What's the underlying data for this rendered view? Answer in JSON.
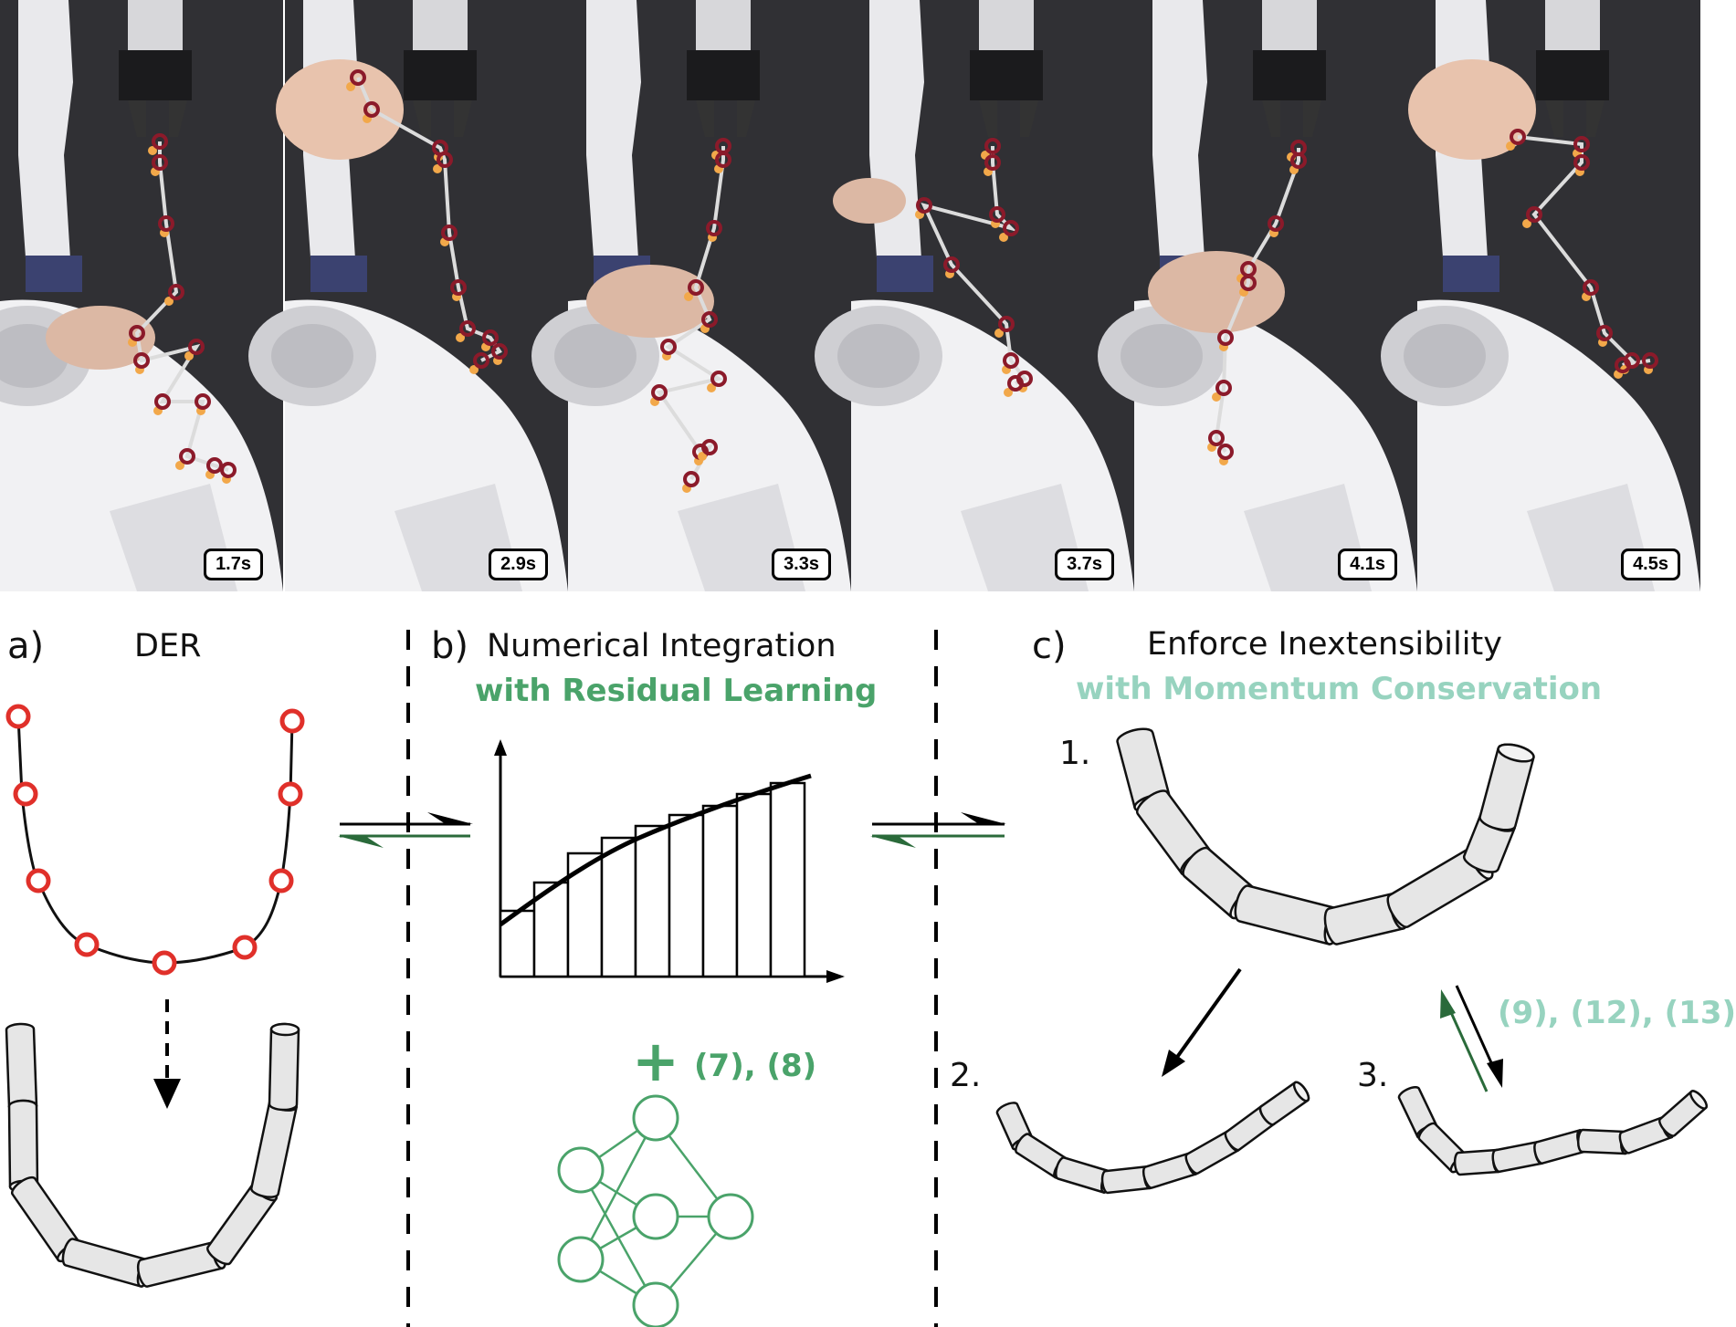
{
  "frames": [
    {
      "time": "1.7s"
    },
    {
      "time": "2.9s"
    },
    {
      "time": "3.3s"
    },
    {
      "time": "3.7s"
    },
    {
      "time": "4.1s"
    },
    {
      "time": "4.5s"
    }
  ],
  "panel_a": {
    "letter": "a)",
    "title": "DER"
  },
  "panel_b": {
    "letter": "b)",
    "title": "Numerical Integration",
    "subtitle": "with Residual Learning",
    "eq_ref": "(7), (8)",
    "plus": "+"
  },
  "panel_c": {
    "letter": "c)",
    "title": "Enforce Inextensibility",
    "subtitle": "with Momentum Conservation",
    "step1": "1.",
    "step2": "2.",
    "step3": "3.",
    "eq_ref": "(9), (12), (13)"
  },
  "colors": {
    "green": "#4aa36a",
    "teal": "#97d3bf",
    "node_red": "#e0302a",
    "marker_dark": "#8b1a2a",
    "marker_orange": "#f2a84a"
  }
}
